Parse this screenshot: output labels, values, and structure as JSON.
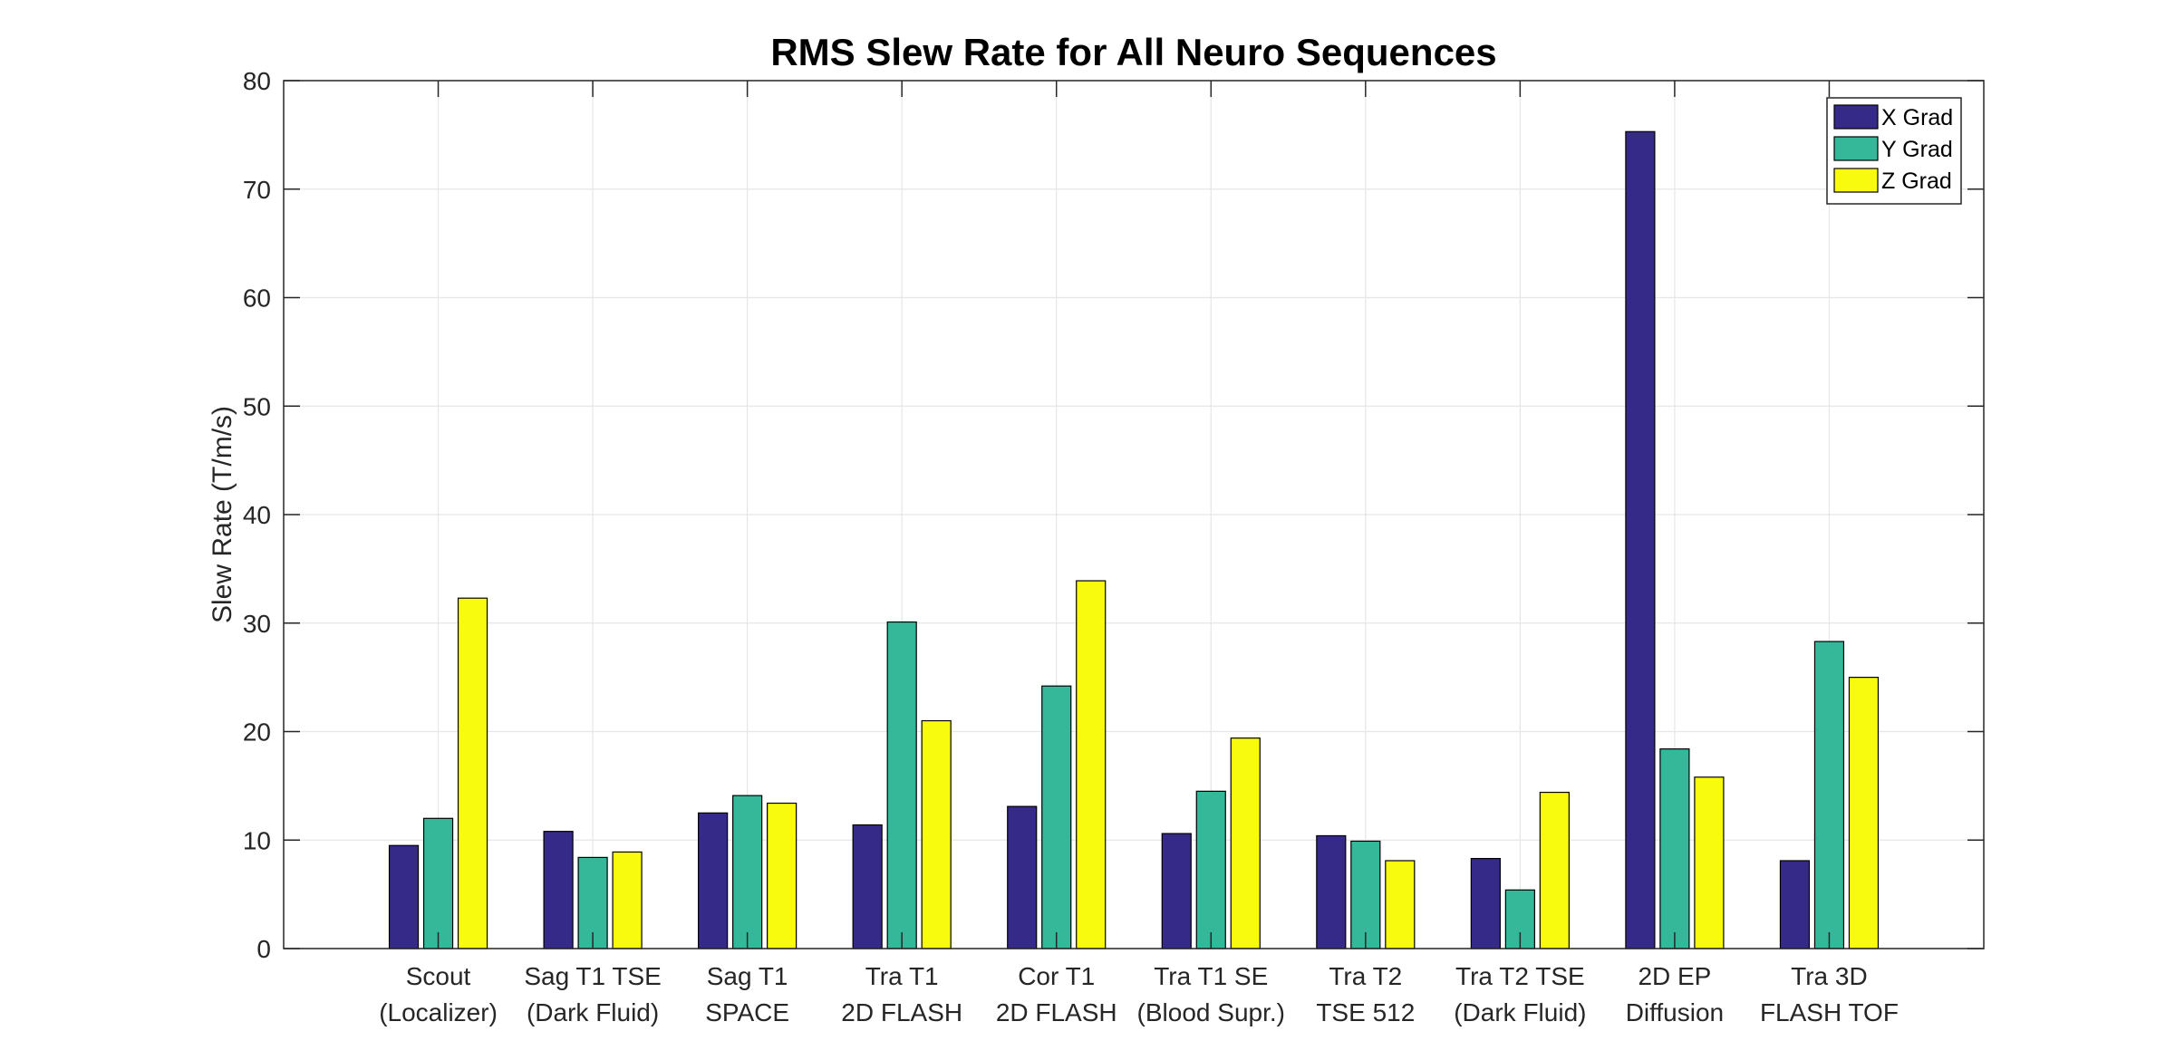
{
  "chart_data": {
    "type": "bar",
    "title": "RMS Slew Rate for All Neuro Sequences",
    "xlabel": "",
    "ylabel": "Slew Rate (T/m/s)",
    "ylim": [
      0,
      80
    ],
    "yticks": [
      0,
      10,
      20,
      30,
      40,
      50,
      60,
      70,
      80
    ],
    "grid": true,
    "legend_position": "top-right",
    "categories": [
      [
        "Scout",
        "(Localizer)"
      ],
      [
        "Sag T1 TSE",
        "(Dark Fluid)"
      ],
      [
        "Sag T1",
        "SPACE"
      ],
      [
        "Tra T1",
        "2D FLASH"
      ],
      [
        "Cor T1",
        "2D FLASH"
      ],
      [
        "Tra T1 SE",
        "(Blood Supr.)"
      ],
      [
        "Tra T2",
        "TSE 512"
      ],
      [
        "Tra T2 TSE",
        "(Dark Fluid)"
      ],
      [
        "2D EP",
        "Diffusion"
      ],
      [
        "Tra 3D",
        "FLASH TOF"
      ]
    ],
    "series": [
      {
        "name": "X Grad",
        "color": "#352a87",
        "values": [
          9.5,
          10.8,
          12.5,
          11.4,
          13.1,
          10.6,
          10.4,
          8.3,
          75.3,
          8.1
        ]
      },
      {
        "name": "Y Grad",
        "color": "#35b89a",
        "values": [
          12.0,
          8.4,
          14.1,
          30.1,
          24.2,
          14.5,
          9.9,
          5.4,
          18.4,
          28.3
        ]
      },
      {
        "name": "Z Grad",
        "color": "#f9fb0e",
        "values": [
          32.3,
          8.9,
          13.4,
          21.0,
          33.9,
          19.4,
          8.1,
          14.4,
          15.8,
          25.0
        ]
      }
    ]
  }
}
